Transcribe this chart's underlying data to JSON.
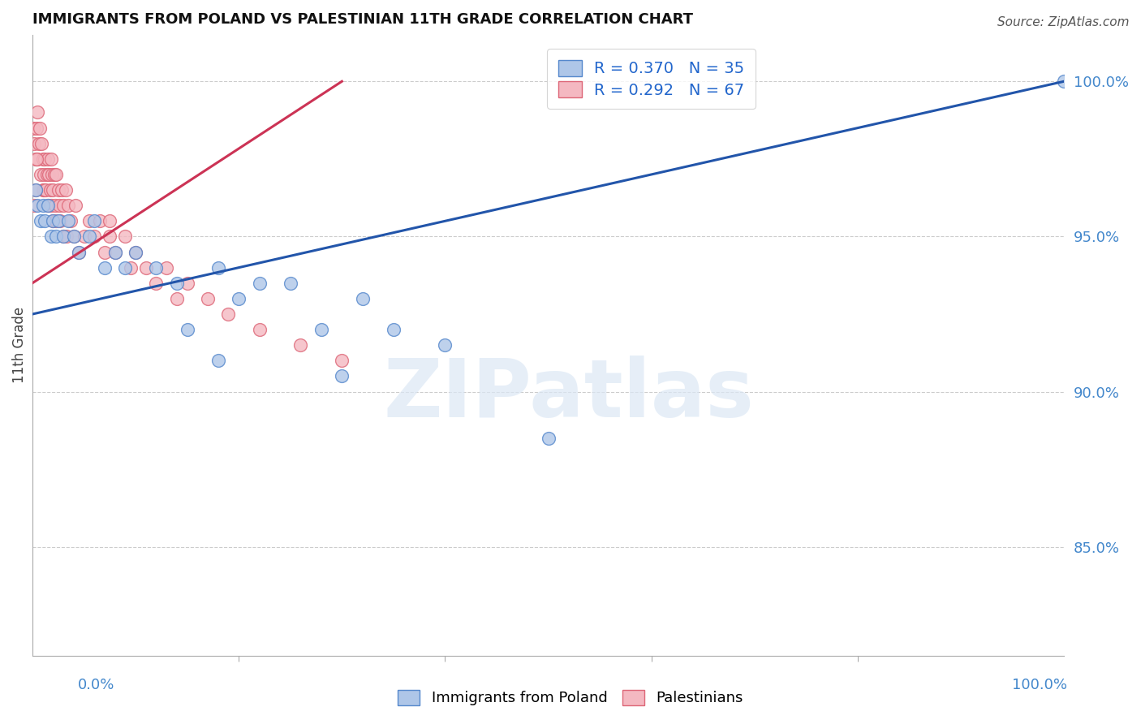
{
  "title": "IMMIGRANTS FROM POLAND VS PALESTINIAN 11TH GRADE CORRELATION CHART",
  "source": "Source: ZipAtlas.com",
  "ylabel": "11th Grade",
  "r_blue": 0.37,
  "n_blue": 35,
  "r_pink": 0.292,
  "n_pink": 67,
  "blue_color": "#aec6e8",
  "pink_color": "#f4b8c1",
  "blue_edge_color": "#5588cc",
  "pink_edge_color": "#dd6677",
  "blue_line_color": "#2255aa",
  "pink_line_color": "#cc3355",
  "legend_text_color": "#2266cc",
  "right_axis_color": "#4488cc",
  "watermark": "ZIPatlas",
  "y_ticks_right": [
    85.0,
    90.0,
    95.0,
    100.0
  ],
  "xlim": [
    0,
    100
  ],
  "ylim": [
    81.5,
    101.5
  ],
  "blue_scatter_x": [
    0.3,
    0.5,
    0.8,
    1.0,
    1.2,
    1.5,
    1.8,
    2.0,
    2.3,
    2.5,
    3.0,
    3.5,
    4.0,
    4.5,
    5.5,
    6.0,
    7.0,
    8.0,
    9.0,
    10.0,
    12.0,
    14.0,
    15.0,
    18.0,
    20.0,
    22.0,
    25.0,
    28.0,
    32.0,
    35.0,
    40.0,
    18.0,
    30.0,
    50.0,
    100.0
  ],
  "blue_scatter_y": [
    96.5,
    96.0,
    95.5,
    96.0,
    95.5,
    96.0,
    95.0,
    95.5,
    95.0,
    95.5,
    95.0,
    95.5,
    95.0,
    94.5,
    95.0,
    95.5,
    94.0,
    94.5,
    94.0,
    94.5,
    94.0,
    93.5,
    92.0,
    94.0,
    93.0,
    93.5,
    93.5,
    92.0,
    93.0,
    92.0,
    91.5,
    91.0,
    90.5,
    88.5,
    100.0
  ],
  "pink_scatter_x": [
    0.1,
    0.2,
    0.3,
    0.4,
    0.5,
    0.5,
    0.6,
    0.7,
    0.8,
    0.9,
    1.0,
    1.0,
    1.1,
    1.1,
    1.2,
    1.3,
    1.4,
    1.5,
    1.5,
    1.6,
    1.7,
    1.8,
    1.8,
    1.9,
    2.0,
    2.0,
    2.1,
    2.2,
    2.3,
    2.3,
    2.5,
    2.6,
    2.7,
    2.8,
    3.0,
    3.0,
    3.2,
    3.3,
    3.5,
    3.7,
    4.0,
    4.2,
    4.5,
    5.0,
    5.5,
    6.0,
    6.5,
    7.0,
    7.5,
    7.5,
    8.0,
    9.0,
    9.5,
    10.0,
    11.0,
    12.0,
    13.0,
    14.0,
    15.0,
    17.0,
    19.0,
    22.0,
    26.0,
    30.0,
    0.2,
    0.3,
    0.4
  ],
  "pink_scatter_y": [
    98.5,
    98.0,
    97.5,
    98.5,
    99.0,
    97.5,
    98.0,
    98.5,
    97.0,
    98.0,
    97.5,
    96.5,
    97.0,
    96.5,
    97.5,
    96.5,
    97.0,
    97.5,
    96.0,
    97.0,
    96.5,
    97.5,
    96.0,
    97.0,
    96.5,
    95.5,
    97.0,
    96.0,
    97.0,
    95.5,
    96.5,
    96.0,
    95.5,
    96.5,
    96.0,
    95.0,
    96.5,
    95.0,
    96.0,
    95.5,
    95.0,
    96.0,
    94.5,
    95.0,
    95.5,
    95.0,
    95.5,
    94.5,
    95.5,
    95.0,
    94.5,
    95.0,
    94.0,
    94.5,
    94.0,
    93.5,
    94.0,
    93.0,
    93.5,
    93.0,
    92.5,
    92.0,
    91.5,
    91.0,
    96.0,
    96.5,
    97.5
  ],
  "blue_trend_x": [
    0,
    100
  ],
  "blue_trend_y": [
    92.5,
    100.0
  ],
  "pink_trend_x": [
    0,
    30
  ],
  "pink_trend_y": [
    93.5,
    100.0
  ]
}
